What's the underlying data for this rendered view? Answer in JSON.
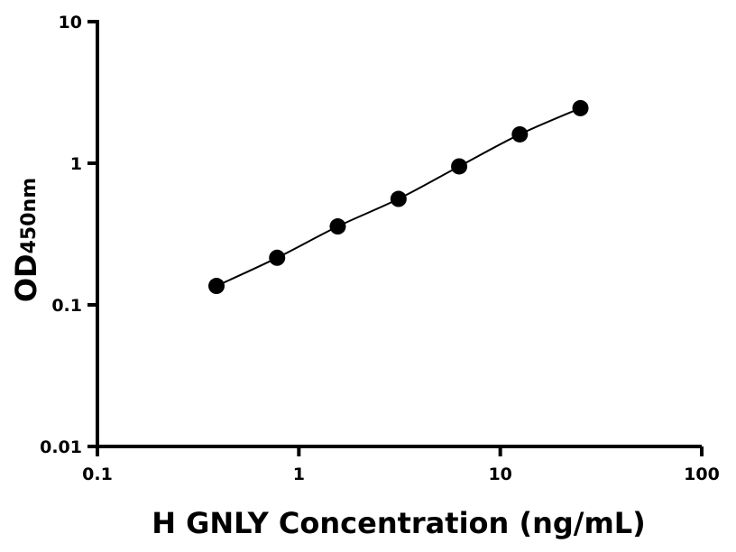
{
  "chart_data": {
    "type": "scatter",
    "title": "",
    "xlabel": "H GNLY Concentration (ng/mL)",
    "ylabel": {
      "main": "OD",
      "subscript": "450nm"
    },
    "x_scale": "log",
    "y_scale": "log",
    "xlim": [
      0.1,
      100
    ],
    "ylim": [
      0.01,
      10
    ],
    "x_ticks": [
      {
        "value": 0.1,
        "label": "0.1"
      },
      {
        "value": 1,
        "label": "1"
      },
      {
        "value": 10,
        "label": "10"
      },
      {
        "value": 100,
        "label": "100"
      }
    ],
    "y_ticks": [
      {
        "value": 0.01,
        "label": "0.01"
      },
      {
        "value": 0.1,
        "label": "0.1"
      },
      {
        "value": 1,
        "label": "1"
      },
      {
        "value": 10,
        "label": "10"
      }
    ],
    "grid": false,
    "series": [
      {
        "points": [
          {
            "x": 0.39,
            "y": 0.136
          },
          {
            "x": 0.78,
            "y": 0.215
          },
          {
            "x": 1.56,
            "y": 0.358
          },
          {
            "x": 3.125,
            "y": 0.56
          },
          {
            "x": 6.25,
            "y": 0.95
          },
          {
            "x": 12.5,
            "y": 1.6
          },
          {
            "x": 25,
            "y": 2.45
          }
        ],
        "fit_line": true,
        "color": "#000000"
      }
    ]
  }
}
